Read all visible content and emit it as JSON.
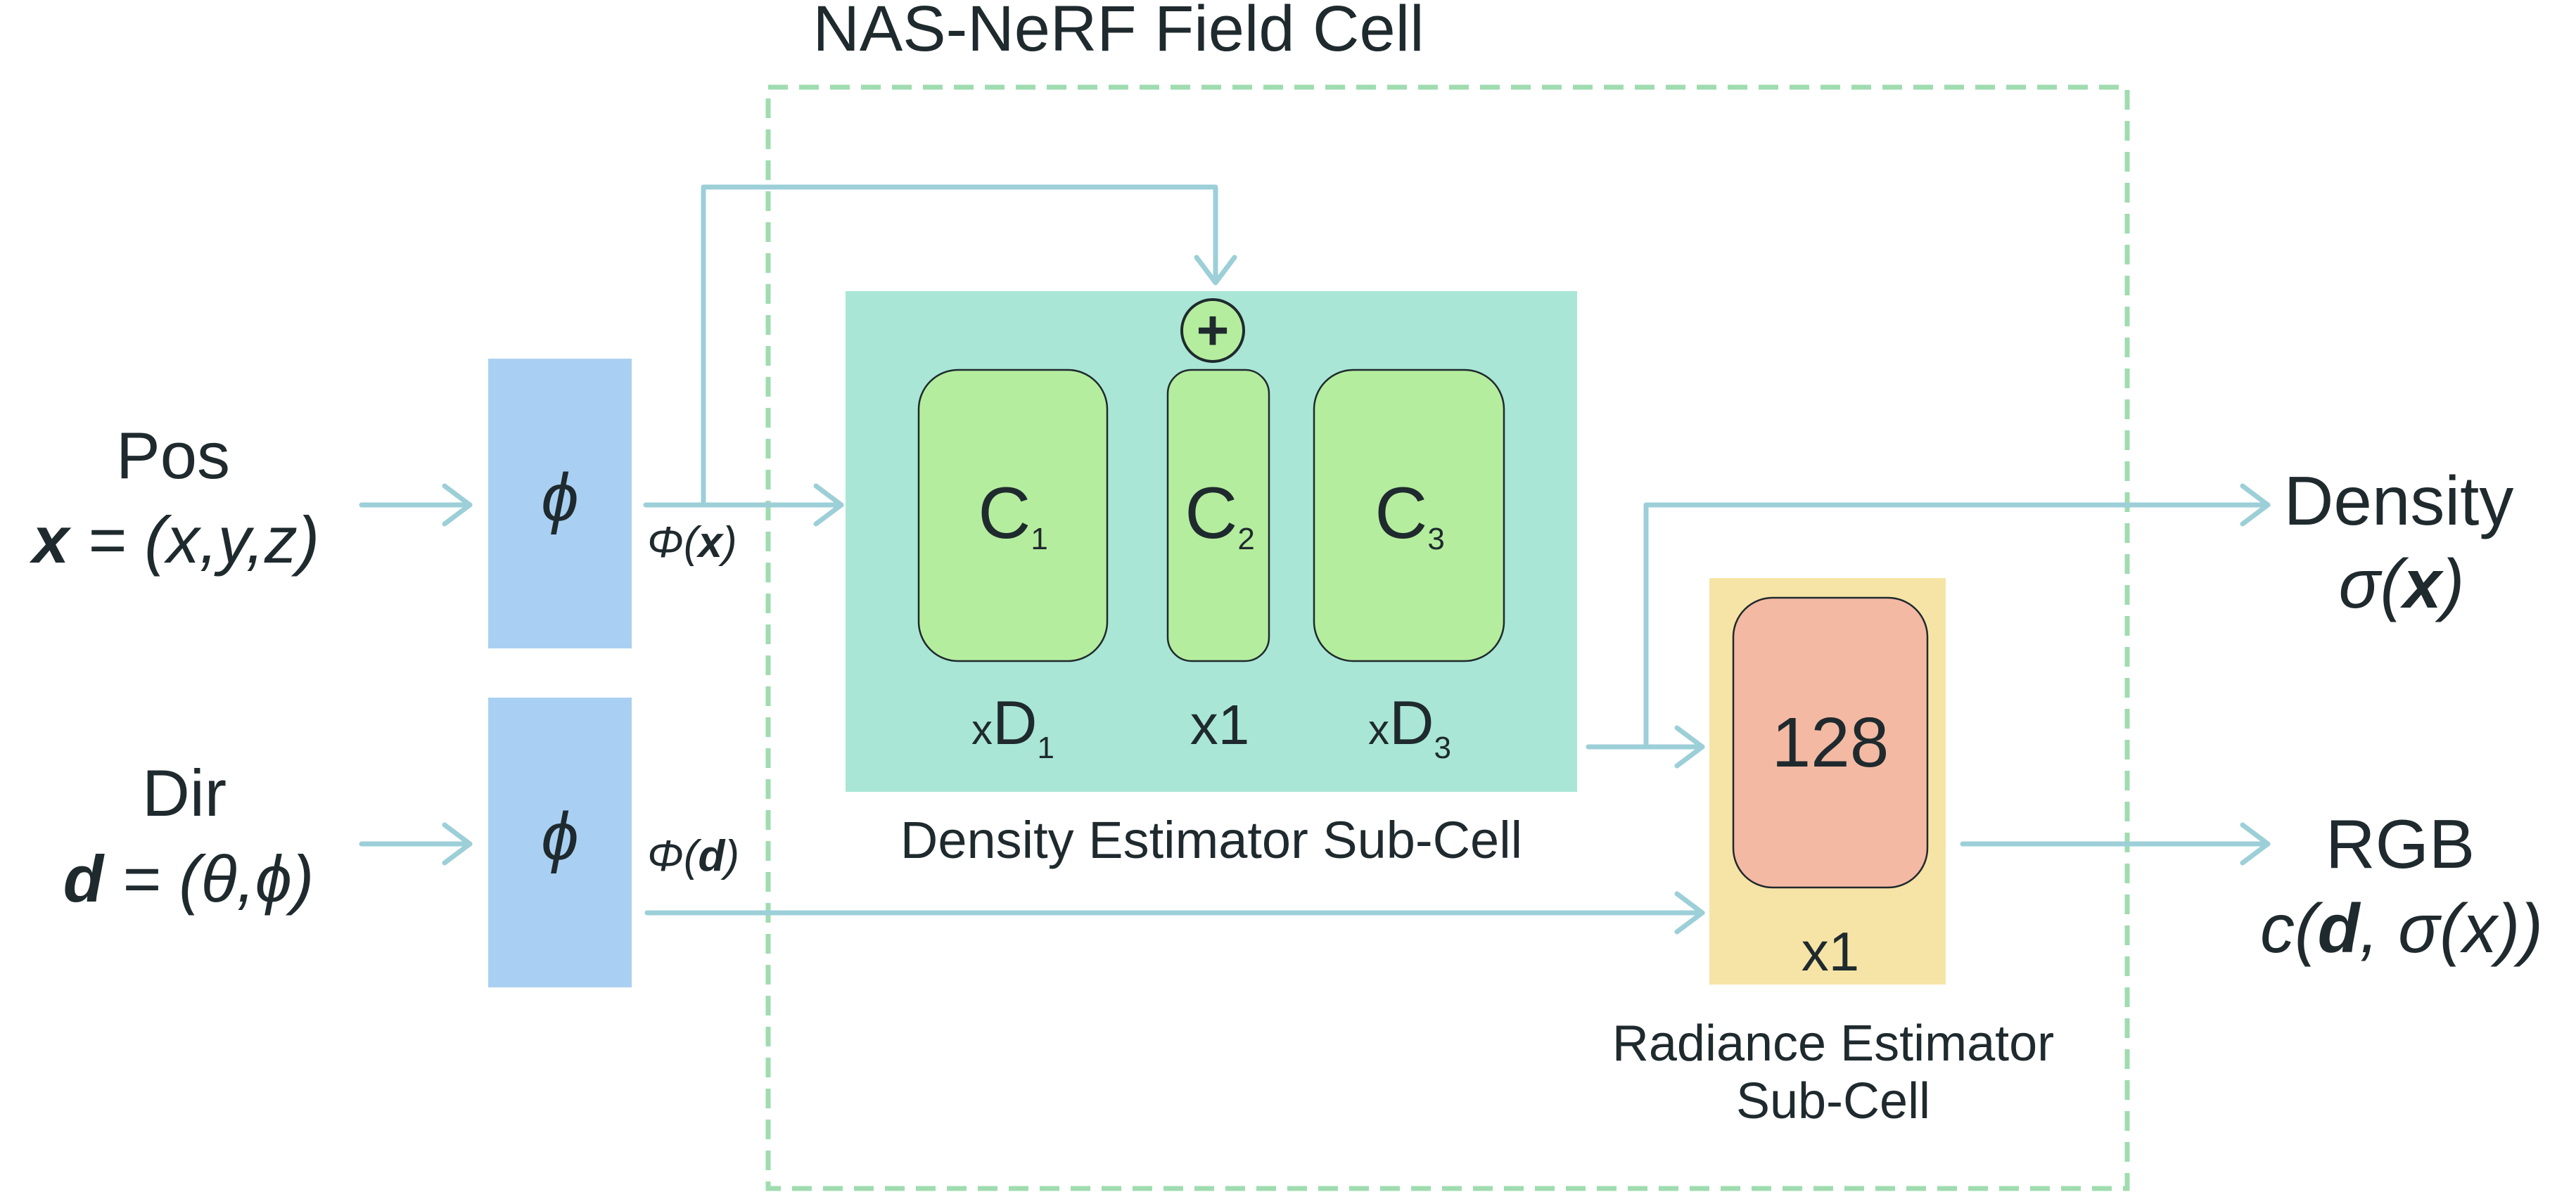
{
  "title": "NAS-NeRF Field Cell",
  "inputs": {
    "pos": {
      "label": "Pos",
      "x_sym": "x",
      "x_rest": " = (x,y,z)"
    },
    "dir": {
      "label": "Dir",
      "d_sym": "d",
      "d_rest": " = (θ,ϕ)"
    }
  },
  "encoders": {
    "symbol": "ϕ",
    "pos_out_prefix": "Φ(",
    "pos_out_var": "x",
    "pos_out_suffix": ")",
    "dir_out_prefix": "Φ(",
    "dir_out_var": "d",
    "dir_out_suffix": ")"
  },
  "density_subcell": {
    "label": "Density Estimator Sub-Cell",
    "add_symbol": "+",
    "blocks": [
      {
        "name": "C",
        "sub": "1",
        "mult_prefix": "x",
        "mult_main": "D",
        "mult_sub": "1"
      },
      {
        "name": "C",
        "sub": "2",
        "mult_prefix": "",
        "mult_main": "x1",
        "mult_sub": ""
      },
      {
        "name": "C",
        "sub": "3",
        "mult_prefix": "x",
        "mult_main": "D",
        "mult_sub": "3"
      }
    ]
  },
  "radiance_subcell": {
    "label_line1": "Radiance Estimator",
    "label_line2": "Sub-Cell",
    "block_value": "128",
    "mult": "x1"
  },
  "outputs": {
    "density": {
      "label": "Density",
      "expr_prefix": "σ(",
      "expr_var": "x",
      "expr_suffix": ")"
    },
    "rgb": {
      "label": "RGB",
      "expr_a": "c(",
      "expr_var": "d",
      "expr_b": ", σ(x))"
    }
  },
  "colors": {
    "arrow": "#9ccfd8",
    "encoder_fill": "#a9d0f2",
    "density_subcell_fill": "#a9e6d6",
    "c_block_fill": "#b5ed9e",
    "radiance_subcell_fill": "#f6e4a6",
    "radiance_block_fill": "#f4b9a3",
    "field_cell_border": "#9fdcb0",
    "text": "#1f2a2e"
  }
}
